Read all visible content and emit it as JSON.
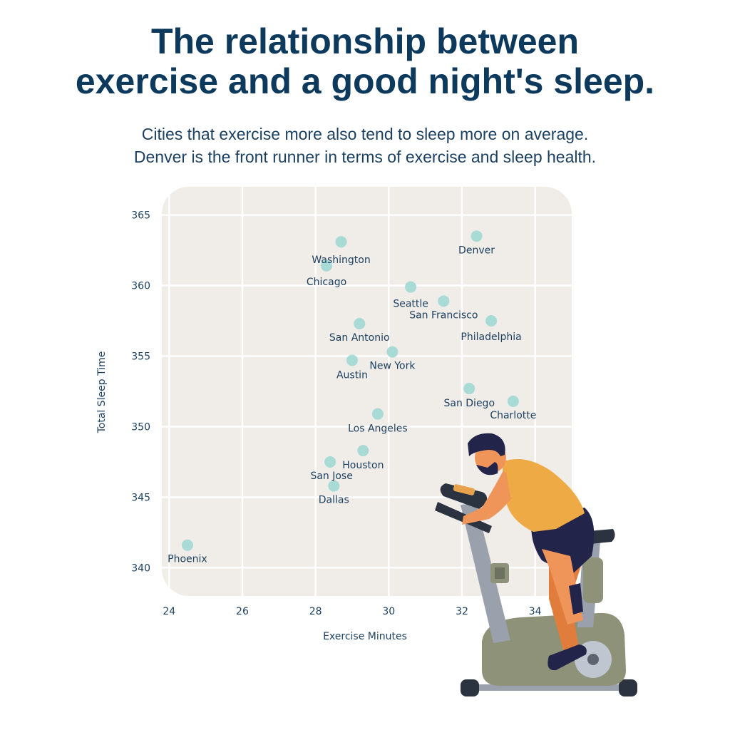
{
  "header": {
    "title_lines": [
      "The relationship between",
      "exercise and a good night's sleep."
    ],
    "subtitle_lines": [
      "Cities that exercise more also tend to sleep more on average.",
      "Denver is the front runner in terms of exercise and sleep health."
    ]
  },
  "colors": {
    "title": "#0d3a5c",
    "text": "#1b3f5e",
    "plot_bg": "#f0ece8",
    "grid": "#ffffff",
    "point": "#a8dad6"
  },
  "illustration": {
    "icon": "man-on-exercise-bike-illustration"
  },
  "chart_data": {
    "type": "scatter",
    "title": "The relationship between exercise and a good night's sleep.",
    "xlabel": "Exercise Minutes",
    "ylabel": "Total Sleep Time",
    "xlim": [
      23.8,
      35
    ],
    "ylim": [
      338,
      367
    ],
    "xticks": [
      24,
      26,
      28,
      30,
      32,
      34
    ],
    "yticks": [
      340,
      345,
      350,
      355,
      360,
      365
    ],
    "grid": true,
    "points": [
      {
        "label": "Washington",
        "x": 28.7,
        "y": 363.1
      },
      {
        "label": "Denver",
        "x": 32.4,
        "y": 363.5
      },
      {
        "label": "Chicago",
        "x": 28.3,
        "y": 361.4
      },
      {
        "label": "Seattle",
        "x": 30.6,
        "y": 359.9
      },
      {
        "label": "San Francisco",
        "x": 31.5,
        "y": 358.9
      },
      {
        "label": "Philadelphia",
        "x": 32.8,
        "y": 357.5
      },
      {
        "label": "San Antonio",
        "x": 29.2,
        "y": 357.3
      },
      {
        "label": "New York",
        "x": 30.1,
        "y": 355.3
      },
      {
        "label": "Austin",
        "x": 29.0,
        "y": 354.7
      },
      {
        "label": "San Diego",
        "x": 32.2,
        "y": 352.7
      },
      {
        "label": "Charlotte",
        "x": 33.4,
        "y": 351.8
      },
      {
        "label": "Los Angeles",
        "x": 29.7,
        "y": 350.9
      },
      {
        "label": "Houston",
        "x": 29.3,
        "y": 348.3
      },
      {
        "label": "San Jose",
        "x": 28.4,
        "y": 347.5
      },
      {
        "label": "Dallas",
        "x": 28.5,
        "y": 345.8
      },
      {
        "label": "Phoenix",
        "x": 24.5,
        "y": 341.6
      }
    ]
  }
}
